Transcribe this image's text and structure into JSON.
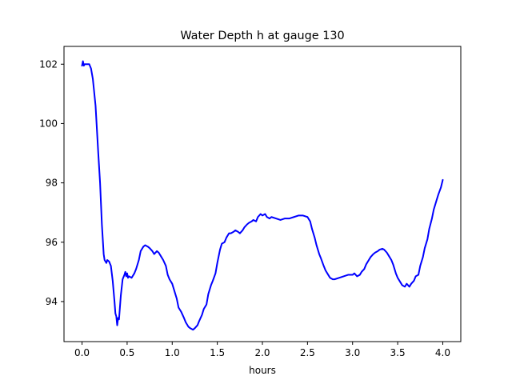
{
  "chart_data": {
    "type": "line",
    "title": "Water Depth h at gauge 130",
    "xlabel": "hours",
    "ylabel": "",
    "xlim": [
      -0.2,
      4.2
    ],
    "ylim": [
      92.65,
      102.6
    ],
    "xticks": [
      0.0,
      0.5,
      1.0,
      1.5,
      2.0,
      2.5,
      3.0,
      3.5,
      4.0
    ],
    "xtick_labels": [
      "0.0",
      "0.5",
      "1.0",
      "1.5",
      "2.0",
      "2.5",
      "3.0",
      "3.5",
      "4.0"
    ],
    "yticks": [
      94,
      96,
      98,
      100,
      102
    ],
    "ytick_labels": [
      "94",
      "96",
      "98",
      "100",
      "102"
    ],
    "grid": false,
    "series": [
      {
        "color": "#0000ff",
        "x": [
          0.0,
          0.01,
          0.02,
          0.03,
          0.05,
          0.08,
          0.1,
          0.12,
          0.15,
          0.18,
          0.2,
          0.22,
          0.24,
          0.25,
          0.27,
          0.28,
          0.3,
          0.32,
          0.34,
          0.36,
          0.37,
          0.38,
          0.39,
          0.4,
          0.41,
          0.42,
          0.43,
          0.45,
          0.47,
          0.48,
          0.49,
          0.5,
          0.51,
          0.52,
          0.55,
          0.58,
          0.6,
          0.63,
          0.65,
          0.68,
          0.7,
          0.73,
          0.75,
          0.78,
          0.8,
          0.83,
          0.85,
          0.87,
          0.9,
          0.93,
          0.95,
          0.97,
          1.0,
          1.03,
          1.05,
          1.07,
          1.1,
          1.13,
          1.15,
          1.18,
          1.2,
          1.23,
          1.25,
          1.28,
          1.3,
          1.33,
          1.35,
          1.38,
          1.4,
          1.43,
          1.45,
          1.48,
          1.5,
          1.53,
          1.55,
          1.58,
          1.6,
          1.63,
          1.65,
          1.68,
          1.7,
          1.73,
          1.75,
          1.78,
          1.8,
          1.83,
          1.85,
          1.88,
          1.9,
          1.93,
          1.95,
          1.98,
          2.0,
          2.03,
          2.05,
          2.08,
          2.1,
          2.15,
          2.2,
          2.25,
          2.3,
          2.35,
          2.4,
          2.45,
          2.5,
          2.53,
          2.55,
          2.58,
          2.6,
          2.63,
          2.65,
          2.68,
          2.7,
          2.73,
          2.75,
          2.78,
          2.8,
          2.85,
          2.9,
          2.95,
          3.0,
          3.02,
          3.05,
          3.08,
          3.1,
          3.13,
          3.15,
          3.18,
          3.2,
          3.23,
          3.25,
          3.28,
          3.3,
          3.33,
          3.35,
          3.38,
          3.4,
          3.43,
          3.45,
          3.48,
          3.5,
          3.53,
          3.55,
          3.58,
          3.6,
          3.63,
          3.65,
          3.68,
          3.7,
          3.73,
          3.75,
          3.78,
          3.8,
          3.83,
          3.85,
          3.88,
          3.9,
          3.93,
          3.95,
          3.98,
          4.0
        ],
        "y": [
          101.95,
          102.1,
          101.95,
          102.0,
          102.0,
          102.0,
          101.85,
          101.5,
          100.6,
          99.0,
          98.0,
          96.6,
          95.6,
          95.4,
          95.3,
          95.4,
          95.35,
          95.2,
          94.7,
          94.0,
          93.6,
          93.5,
          93.2,
          93.45,
          93.4,
          93.8,
          94.2,
          94.75,
          94.9,
          95.0,
          94.85,
          94.95,
          94.8,
          94.85,
          94.8,
          94.95,
          95.1,
          95.4,
          95.7,
          95.85,
          95.9,
          95.85,
          95.8,
          95.7,
          95.6,
          95.7,
          95.65,
          95.55,
          95.4,
          95.2,
          94.9,
          94.75,
          94.6,
          94.3,
          94.1,
          93.8,
          93.65,
          93.45,
          93.3,
          93.15,
          93.1,
          93.05,
          93.1,
          93.2,
          93.35,
          93.55,
          93.75,
          93.9,
          94.25,
          94.55,
          94.7,
          94.95,
          95.3,
          95.75,
          95.95,
          96.0,
          96.15,
          96.3,
          96.3,
          96.35,
          96.4,
          96.35,
          96.3,
          96.4,
          96.5,
          96.6,
          96.65,
          96.7,
          96.75,
          96.7,
          96.85,
          96.95,
          96.9,
          96.95,
          96.85,
          96.8,
          96.85,
          96.8,
          96.75,
          96.8,
          96.8,
          96.85,
          96.9,
          96.9,
          96.85,
          96.7,
          96.45,
          96.15,
          95.9,
          95.6,
          95.45,
          95.2,
          95.05,
          94.9,
          94.8,
          94.75,
          94.75,
          94.8,
          94.85,
          94.9,
          94.9,
          94.95,
          94.85,
          94.9,
          95.0,
          95.1,
          95.25,
          95.4,
          95.5,
          95.6,
          95.65,
          95.7,
          95.75,
          95.78,
          95.75,
          95.65,
          95.55,
          95.4,
          95.25,
          94.95,
          94.8,
          94.65,
          94.55,
          94.5,
          94.6,
          94.5,
          94.6,
          94.7,
          94.85,
          94.9,
          95.2,
          95.5,
          95.8,
          96.1,
          96.45,
          96.8,
          97.1,
          97.4,
          97.6,
          97.85,
          98.1
        ]
      }
    ]
  }
}
